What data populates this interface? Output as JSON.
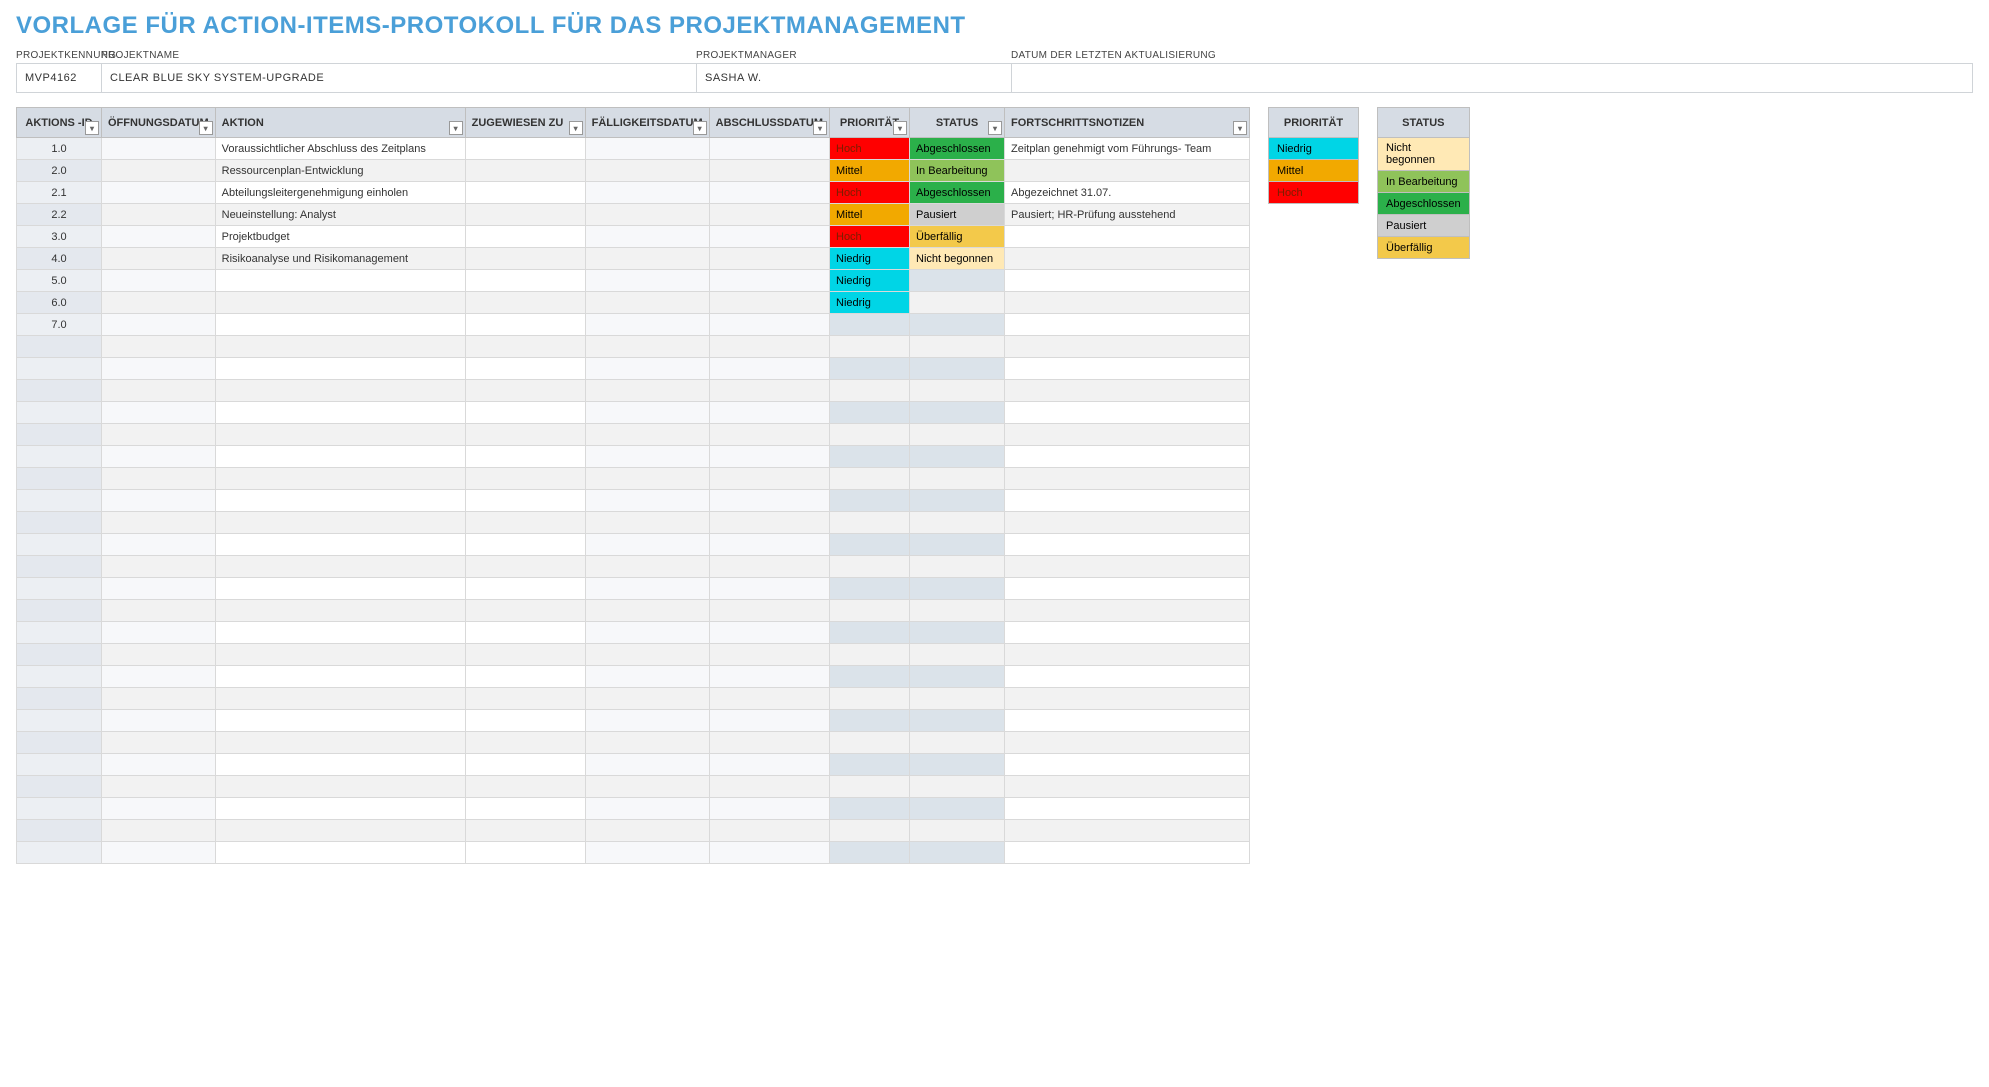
{
  "title": "VORLAGE FÜR ACTION-ITEMS-PROTOKOLL FÜR DAS PROJEKTMANAGEMENT",
  "meta": {
    "labels": {
      "project_id": "PROJEKTKENNUNG",
      "project_name": "PROJEKTNAME",
      "project_manager": "PROJEKTMANAGER",
      "last_update": "DATUM DER LETZTEN AKTUALISIERUNG"
    },
    "values": {
      "project_id": "MVP4162",
      "project_name": "CLEAR BLUE SKY SYSTEM-UPGRADE",
      "project_manager": "SASHA W.",
      "last_update": ""
    }
  },
  "columns": {
    "id": "AKTIONS -ID",
    "open_date": "ÖFFNUNGSDATUM",
    "action": "AKTION",
    "assigned_to": "ZUGEWIESEN ZU",
    "due_date": "FÄLLIGKEITSDATUM",
    "close_date": "ABSCHLUSSDATUM",
    "priority": "PRIORITÄT",
    "status": "STATUS",
    "notes": "FORTSCHRITTSNOTIZEN"
  },
  "rows": [
    {
      "id": "1.0",
      "action": "Voraussichtlicher Abschluss des Zeitplans",
      "priority": "Hoch",
      "status": "Abgeschlossen",
      "notes": "Zeitplan genehmigt vom Führungs- Team"
    },
    {
      "id": "2.0",
      "action": "Ressourcenplan-Entwicklung",
      "priority": "Mittel",
      "status": "In Bearbeitung",
      "notes": ""
    },
    {
      "id": "2.1",
      "action": "Abteilungsleitergenehmigung einholen",
      "priority": "Hoch",
      "status": "Abgeschlossen",
      "notes": "Abgezeichnet 31.07."
    },
    {
      "id": "2.2",
      "action": "Neueinstellung: Analyst",
      "priority": "Mittel",
      "status": "Pausiert",
      "notes": "Pausiert; HR-Prüfung ausstehend"
    },
    {
      "id": "3.0",
      "action": "Projektbudget",
      "priority": "Hoch",
      "status": "Überfällig",
      "notes": ""
    },
    {
      "id": "4.0",
      "action": "Risikoanalyse und Risikomanagement",
      "priority": "Niedrig",
      "status": "Nicht begonnen",
      "notes": ""
    },
    {
      "id": "5.0",
      "action": "",
      "priority": "Niedrig",
      "status": "",
      "notes": ""
    },
    {
      "id": "6.0",
      "action": "",
      "priority": "Niedrig",
      "status": "",
      "notes": ""
    },
    {
      "id": "7.0",
      "action": "",
      "priority": "",
      "status": "",
      "notes": ""
    }
  ],
  "empty_row_count": 24,
  "legend": {
    "priority": {
      "header": "PRIORITÄT",
      "items": [
        "Niedrig",
        "Mittel",
        "Hoch"
      ]
    },
    "status": {
      "header": "STATUS",
      "items": [
        "Nicht begonnen",
        "In Bearbeitung",
        "Abgeschlossen",
        "Pausiert",
        "Überfällig"
      ]
    }
  },
  "colors": {
    "priority": {
      "Niedrig": {
        "bg": "#00d5e6",
        "fg": "#000000"
      },
      "Mittel": {
        "bg": "#f2a900",
        "fg": "#000000"
      },
      "Hoch": {
        "bg": "#ff0000",
        "fg": "#7a1e00"
      }
    },
    "status": {
      "Nicht begonnen": {
        "bg": "#ffe9b5",
        "fg": "#000000"
      },
      "In Bearbeitung": {
        "bg": "#8fc35a",
        "fg": "#000000"
      },
      "Abgeschlossen": {
        "bg": "#2bb04a",
        "fg": "#000000"
      },
      "Pausiert": {
        "bg": "#cfcfcf",
        "fg": "#000000"
      },
      "Überfällig": {
        "bg": "#f3c94a",
        "fg": "#000000"
      }
    },
    "header_bg": "#d6dce4",
    "title_color": "#4a9fd8"
  }
}
